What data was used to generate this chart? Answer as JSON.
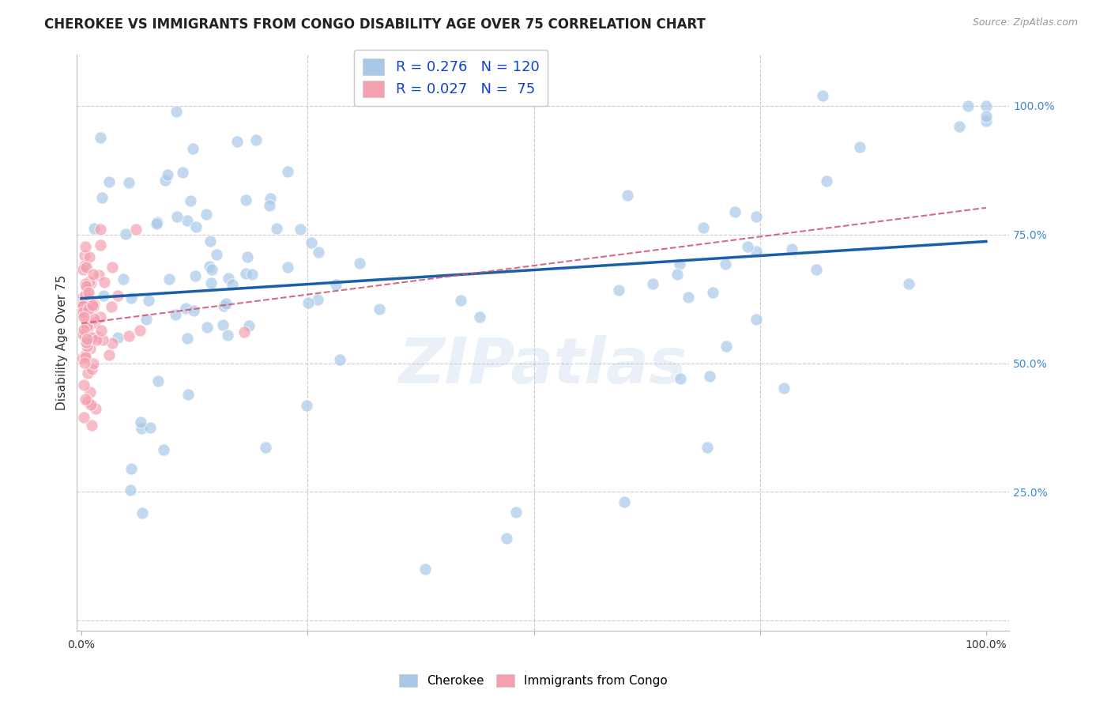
{
  "title": "CHEROKEE VS IMMIGRANTS FROM CONGO DISABILITY AGE OVER 75 CORRELATION CHART",
  "source": "Source: ZipAtlas.com",
  "ylabel": "Disability Age Over 75",
  "xlabel": "",
  "watermark": "ZIPatlas",
  "cherokee_R": 0.276,
  "cherokee_N": 120,
  "congo_R": 0.027,
  "congo_N": 75,
  "blue_color": "#a8c8e8",
  "pink_color": "#f4a0b0",
  "blue_line_color": "#1a5fa8",
  "pink_line_color": "#d05070",
  "grid_color": "#cccccc",
  "background_color": "#ffffff",
  "right_tick_color": "#4488cc",
  "marker_size": 120,
  "marker_alpha": 0.7
}
